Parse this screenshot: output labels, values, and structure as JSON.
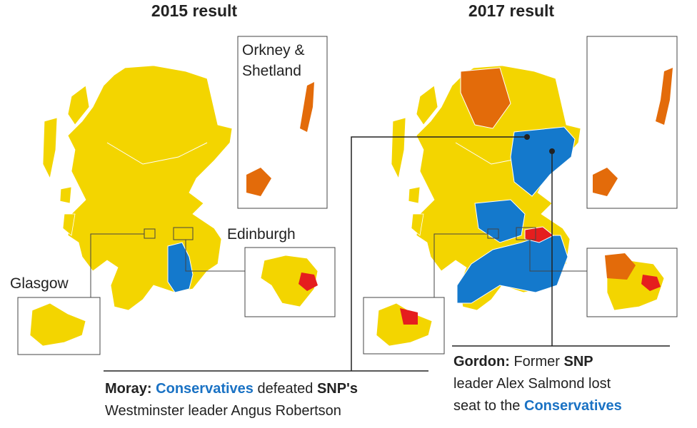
{
  "maps": [
    {
      "title": "2015 result",
      "orkney_label": [
        "Orkney &",
        "Shetland"
      ],
      "edinburgh_label": "Edinburgh",
      "glasgow_label": "Glasgow"
    },
    {
      "title": "2017 result"
    }
  ],
  "callouts": [
    {
      "lines": [
        [
          {
            "text": "Moray:",
            "bold": true
          },
          {
            "text": "Conservatives",
            "bold": true,
            "color": "#1a72c4"
          },
          {
            "text": "defeated"
          },
          {
            "text": "SNP's",
            "bold": true
          }
        ],
        [
          {
            "text": "Westminster leader Angus Robertson"
          }
        ]
      ]
    },
    {
      "lines": [
        [
          {
            "text": "Gordon:",
            "bold": true
          },
          {
            "text": "Former"
          },
          {
            "text": "SNP",
            "bold": true
          }
        ],
        [
          {
            "text": "leader Alex Salmond lost"
          }
        ],
        [
          {
            "text": "seat to the"
          },
          {
            "text": "Conservatives",
            "bold": true,
            "color": "#1a72c4"
          }
        ]
      ]
    }
  ]
}
